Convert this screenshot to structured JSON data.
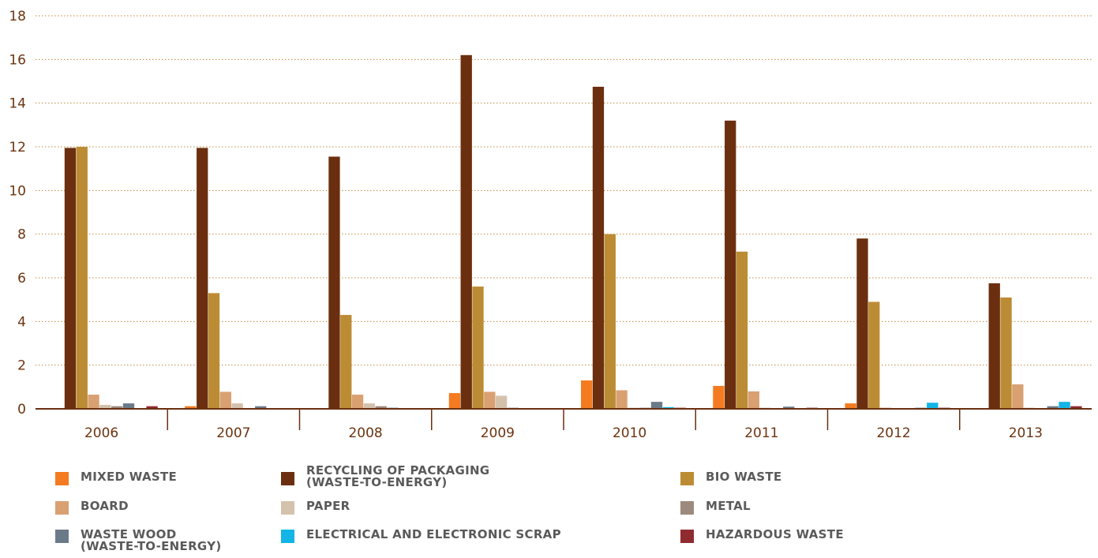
{
  "chart_data": {
    "type": "bar",
    "categories": [
      "2006",
      "2007",
      "2008",
      "2009",
      "2010",
      "2011",
      "2012",
      "2013"
    ],
    "ylim": [
      0,
      18
    ],
    "yticks": [
      0,
      2,
      4,
      6,
      8,
      10,
      12,
      14,
      16,
      18
    ],
    "grid": "horizontal dotted",
    "legend_position": "bottom",
    "series": [
      {
        "name": "MIXED WASTE",
        "color": "#f47b20",
        "values": [
          0,
          0.12,
          0,
          0.72,
          1.3,
          1.05,
          0.25,
          0
        ]
      },
      {
        "name": "RECYCLING OF PACKAGING\n(WASTE-TO-ENERGY)",
        "color": "#6b2f10",
        "values": [
          11.95,
          11.95,
          11.55,
          16.2,
          14.75,
          13.2,
          7.8,
          5.75
        ]
      },
      {
        "name": "BIO WASTE",
        "color": "#bc8c35",
        "values": [
          12.0,
          5.3,
          4.3,
          5.6,
          8.0,
          7.2,
          4.9,
          5.1
        ]
      },
      {
        "name": "BOARD",
        "color": "#d9a072",
        "values": [
          0.65,
          0.78,
          0.65,
          0.78,
          0.85,
          0.8,
          0.05,
          1.12
        ]
      },
      {
        "name": "PAPER",
        "color": "#d5c2ad",
        "values": [
          0.18,
          0.25,
          0.25,
          0.6,
          0.05,
          0.05,
          0.03,
          0.05
        ]
      },
      {
        "name": "METAL",
        "color": "#9c8a7e",
        "values": [
          0.12,
          0.02,
          0.12,
          0.05,
          0.05,
          0.03,
          0.02,
          0.02
        ]
      },
      {
        "name": "WASTE WOOD\n(WASTE-TO-ENERGY)",
        "color": "#6b7a89",
        "values": [
          0.25,
          0.12,
          0.05,
          0.02,
          0.32,
          0.1,
          0.05,
          0.12
        ]
      },
      {
        "name": "ELECTRICAL AND ELECTRONIC SCRAP",
        "color": "#12b5e5",
        "values": [
          0,
          0,
          0,
          0,
          0.08,
          0,
          0.28,
          0.32
        ]
      },
      {
        "name": "HAZARDOUS WASTE",
        "color": "#8f2b2e",
        "values": [
          0.12,
          0,
          0,
          0,
          0.05,
          0.05,
          0.05,
          0.12
        ]
      }
    ]
  }
}
